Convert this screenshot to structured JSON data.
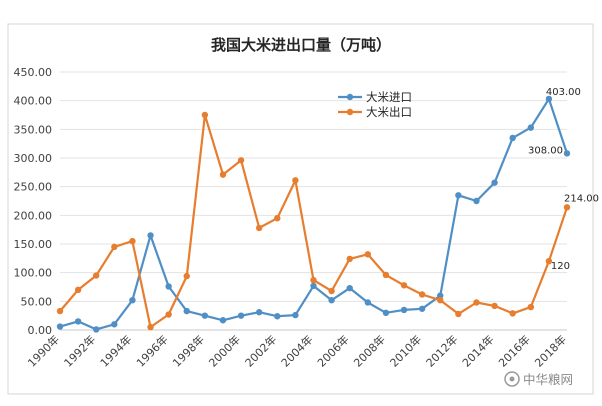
{
  "chart_data": {
    "type": "line",
    "title": "我国大米进出口量（万吨）",
    "xlabel": "",
    "ylabel": "",
    "ylim": [
      0,
      450
    ],
    "yticks": [
      "0.00",
      "50.00",
      "100.00",
      "150.00",
      "200.00",
      "250.00",
      "300.00",
      "350.00",
      "400.00",
      "450.00"
    ],
    "x": [
      1990,
      1991,
      1992,
      1993,
      1994,
      1995,
      1996,
      1997,
      1998,
      1999,
      2000,
      2001,
      2002,
      2003,
      2004,
      2005,
      2006,
      2007,
      2008,
      2009,
      2010,
      2011,
      2012,
      2013,
      2014,
      2015,
      2016,
      2017,
      2018
    ],
    "xtick_labels": [
      "1990年",
      "1992年",
      "1994年",
      "1996年",
      "1998年",
      "2000年",
      "2002年",
      "2004年",
      "2006年",
      "2008年",
      "2010年",
      "2012年",
      "2014年",
      "2016年",
      "2018年"
    ],
    "grid": true,
    "legend_position": "top-center",
    "series": [
      {
        "name": "大米进口",
        "color": "#4f8fc6",
        "values": [
          6,
          15,
          1,
          10,
          52,
          165,
          76,
          33,
          25,
          17,
          25,
          31,
          24,
          26,
          77,
          52,
          73,
          48,
          30,
          35,
          37,
          60,
          235,
          225,
          257,
          335,
          353,
          403,
          308
        ]
      },
      {
        "name": "大米出口",
        "color": "#e77d2e",
        "values": [
          33,
          70,
          95,
          145,
          155,
          5,
          27,
          94,
          375,
          271,
          296,
          178,
          195,
          261,
          87,
          68,
          124,
          132,
          96,
          78,
          62,
          52,
          28,
          48,
          42,
          29,
          40,
          120,
          214
        ]
      }
    ],
    "annotations": [
      {
        "series": 0,
        "index": 27,
        "text": "403.00"
      },
      {
        "series": 0,
        "index": 28,
        "text": "308.00"
      },
      {
        "series": 1,
        "index": 28,
        "text": "214.00"
      },
      {
        "series": 1,
        "index": 27,
        "text": "120"
      }
    ]
  },
  "watermark": "中华粮网"
}
